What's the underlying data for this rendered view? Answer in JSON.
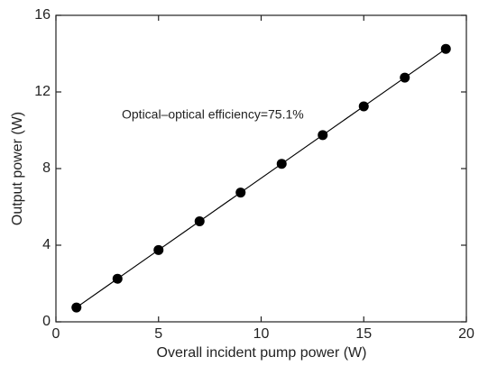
{
  "chart_data": {
    "type": "scatter",
    "x": [
      1,
      3,
      5,
      7,
      9,
      11,
      13,
      15,
      17,
      19
    ],
    "values": [
      0.75,
      2.25,
      3.75,
      5.25,
      6.75,
      8.25,
      9.75,
      11.25,
      12.75,
      14.25
    ],
    "color": "#000000",
    "fit_line": true,
    "xlabel": "Overall incident pump power (W)",
    "ylabel": "Output power (W)",
    "annotation": "Optical–optical efficiency=75.1%",
    "xlim": [
      0,
      20
    ],
    "xticks": [
      0,
      5,
      10,
      15,
      20
    ],
    "ylim": [
      0,
      16
    ],
    "yticks": [
      0,
      4,
      8,
      12,
      16
    ],
    "grid": false
  }
}
